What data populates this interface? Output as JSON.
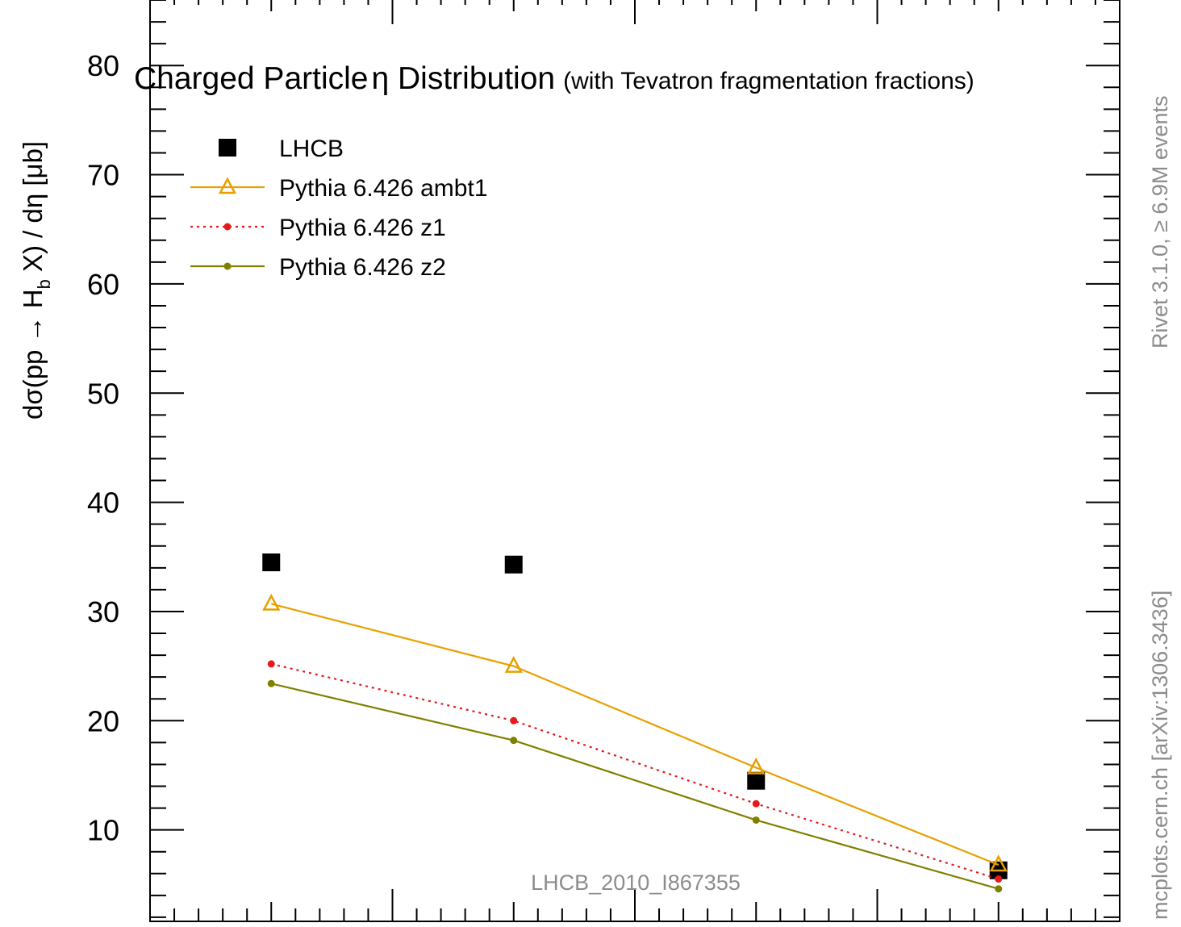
{
  "chart_data": {
    "type": "scatter",
    "title": "Charged Particle",
    "title_eta": "η Distribution",
    "subtitle": "(with Tevatron fragmentation fractions)",
    "ylabel": "dσ(pp → H",
    "ylabel_sub": "b",
    "ylabel_tail": " X) / dη [μb]",
    "ylim": [
      0,
      86
    ],
    "xlim": [
      0,
      4
    ],
    "yticks": [
      10,
      20,
      30,
      40,
      50,
      60,
      70,
      80
    ],
    "x": [
      0.5,
      1.5,
      2.5,
      3.5
    ],
    "series": [
      {
        "name": "LHCB",
        "values": [
          34.5,
          34.3,
          14.5,
          6.3
        ],
        "color": "#000000",
        "marker": "square"
      },
      {
        "name": "Pythia 6.426 ambt1",
        "values": [
          30.7,
          25.0,
          15.7,
          6.8
        ],
        "color": "#e8a000",
        "marker": "triangle-open"
      },
      {
        "name": "Pythia 6.426 z1",
        "values": [
          25.2,
          20.0,
          12.4,
          5.5
        ],
        "color": "#e41a1c",
        "marker": "dot",
        "dashed": true
      },
      {
        "name": "Pythia 6.426 z2",
        "values": [
          23.4,
          18.2,
          10.9,
          4.6
        ],
        "color": "#808000",
        "marker": "dot"
      }
    ],
    "watermark": "LHCB_2010_I867355",
    "side_text_top": "Rivet 3.1.0, ≥ 6.9M events",
    "side_text_bottom": "mcplots.cern.ch [arXiv:1306.3436]"
  }
}
